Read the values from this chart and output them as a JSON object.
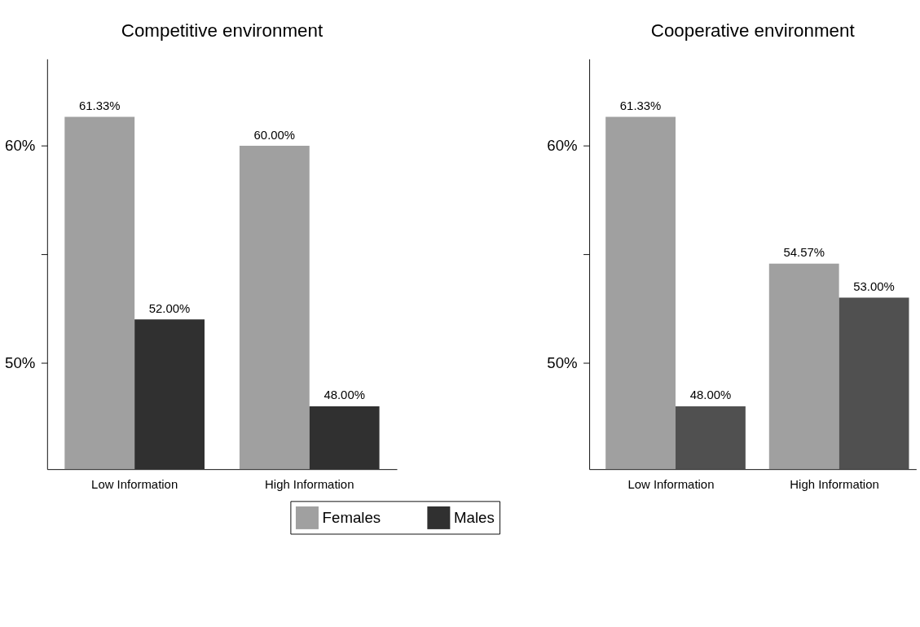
{
  "chart_data": [
    {
      "type": "bar",
      "title": "Competitive environment",
      "categories": [
        "Low Information",
        "High Information"
      ],
      "series": [
        {
          "name": "Females",
          "color": "#a0a0a0",
          "values": [
            61.33,
            60.0
          ],
          "value_labels": [
            "61.33%",
            "60.00%"
          ]
        },
        {
          "name": "Males",
          "color": "#303030",
          "values": [
            52.0,
            48.0
          ],
          "value_labels": [
            "52.00%",
            "48.00%"
          ]
        }
      ],
      "ylim": [
        45.1,
        64.0
      ],
      "yticks": [
        {
          "value": 50,
          "label": "50%"
        },
        {
          "value": 55,
          "label": null
        },
        {
          "value": 60,
          "label": "60%"
        }
      ],
      "grid": false,
      "legend": "bottom"
    },
    {
      "type": "bar",
      "title": "Cooperative environment",
      "categories": [
        "Low Information",
        "High Information"
      ],
      "series": [
        {
          "color": "#a0a0a0",
          "values": [
            61.33,
            54.57
          ],
          "value_labels": [
            "61.33%",
            "54.57%"
          ]
        },
        {
          "color": "#505050",
          "values": [
            48.0,
            53.0
          ],
          "value_labels": [
            "48.00%",
            "53.00%"
          ]
        }
      ],
      "ylim": [
        45.1,
        64.0
      ],
      "yticks": [
        {
          "value": 50,
          "label": "50%"
        },
        {
          "value": 55,
          "label": null
        },
        {
          "value": 60,
          "label": "60%"
        }
      ],
      "grid": false,
      "legend": false
    }
  ]
}
